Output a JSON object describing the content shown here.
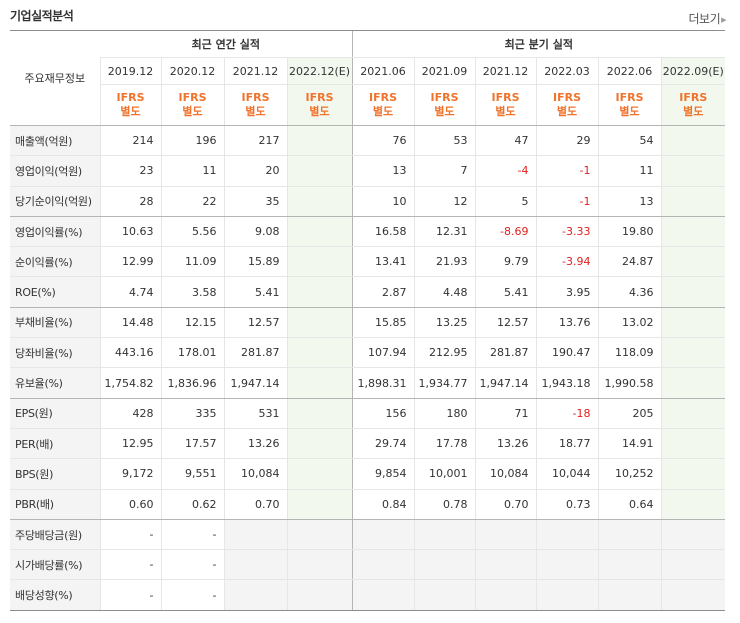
{
  "header": {
    "title": "기업실적분석",
    "more_label": "더보기"
  },
  "table": {
    "stub_label": "주요재무정보",
    "groups": {
      "annual": "최근 연간 실적",
      "quarter": "최근 분기 실적"
    },
    "periods": [
      "2019.12",
      "2020.12",
      "2021.12",
      "2022.12(E)",
      "2021.06",
      "2021.09",
      "2021.12",
      "2022.03",
      "2022.06",
      "2022.09(E)"
    ],
    "ifrs": {
      "line1": "IFRS",
      "line2": "별도"
    },
    "rows": [
      {
        "label": "매출액(억원)",
        "values": [
          "214",
          "196",
          "217",
          "",
          "76",
          "53",
          "47",
          "29",
          "54",
          ""
        ]
      },
      {
        "label": "영업이익(억원)",
        "values": [
          "23",
          "11",
          "20",
          "",
          "13",
          "7",
          "-4",
          "-1",
          "11",
          ""
        ]
      },
      {
        "label": "당기순이익(억원)",
        "values": [
          "28",
          "22",
          "35",
          "",
          "10",
          "12",
          "5",
          "-1",
          "13",
          ""
        ]
      },
      {
        "label": "영업이익률(%)",
        "values": [
          "10.63",
          "5.56",
          "9.08",
          "",
          "16.58",
          "12.31",
          "-8.69",
          "-3.33",
          "19.80",
          ""
        ]
      },
      {
        "label": "순이익률(%)",
        "values": [
          "12.99",
          "11.09",
          "15.89",
          "",
          "13.41",
          "21.93",
          "9.79",
          "-3.94",
          "24.87",
          ""
        ]
      },
      {
        "label": "ROE(%)",
        "values": [
          "4.74",
          "3.58",
          "5.41",
          "",
          "2.87",
          "4.48",
          "5.41",
          "3.95",
          "4.36",
          ""
        ]
      },
      {
        "label": "부채비율(%)",
        "values": [
          "14.48",
          "12.15",
          "12.57",
          "",
          "15.85",
          "13.25",
          "12.57",
          "13.76",
          "13.02",
          ""
        ]
      },
      {
        "label": "당좌비율(%)",
        "values": [
          "443.16",
          "178.01",
          "281.87",
          "",
          "107.94",
          "212.95",
          "281.87",
          "190.47",
          "118.09",
          ""
        ]
      },
      {
        "label": "유보율(%)",
        "values": [
          "1,754.82",
          "1,836.96",
          "1,947.14",
          "",
          "1,898.31",
          "1,934.77",
          "1,947.14",
          "1,943.18",
          "1,990.58",
          ""
        ]
      },
      {
        "label": "EPS(원)",
        "values": [
          "428",
          "335",
          "531",
          "",
          "156",
          "180",
          "71",
          "-18",
          "205",
          ""
        ]
      },
      {
        "label": "PER(배)",
        "values": [
          "12.95",
          "17.57",
          "13.26",
          "",
          "29.74",
          "17.78",
          "13.26",
          "18.77",
          "14.91",
          ""
        ]
      },
      {
        "label": "BPS(원)",
        "values": [
          "9,172",
          "9,551",
          "10,084",
          "",
          "9,854",
          "10,001",
          "10,084",
          "10,044",
          "10,252",
          ""
        ]
      },
      {
        "label": "PBR(배)",
        "values": [
          "0.60",
          "0.62",
          "0.70",
          "",
          "0.84",
          "0.78",
          "0.70",
          "0.73",
          "0.64",
          ""
        ]
      },
      {
        "label": "주당배당금(원)",
        "values": [
          "-",
          "-",
          "",
          "",
          "",
          "",
          "",
          "",
          "",
          ""
        ]
      },
      {
        "label": "시가배당률(%)",
        "values": [
          "-",
          "-",
          "",
          "",
          "",
          "",
          "",
          "",
          "",
          ""
        ]
      },
      {
        "label": "배당성향(%)",
        "values": [
          "-",
          "-",
          "",
          "",
          "",
          "",
          "",
          "",
          "",
          ""
        ]
      }
    ]
  }
}
